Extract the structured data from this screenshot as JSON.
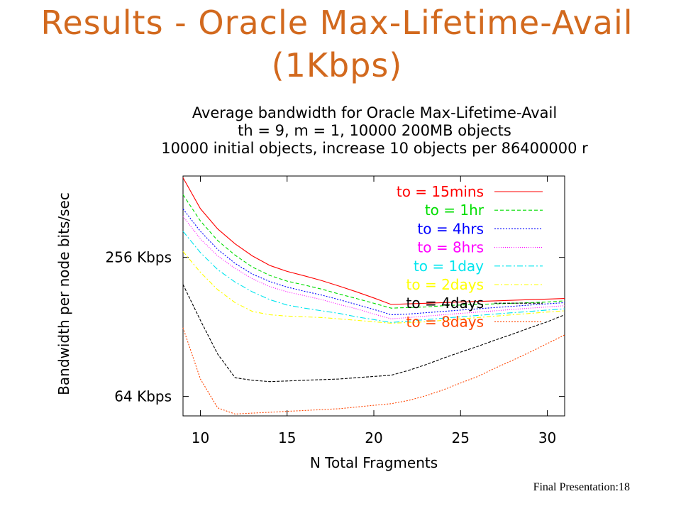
{
  "slide": {
    "title_line1": "Results - Oracle Max-Lifetime-Avail",
    "title_line2": "(1Kbps)",
    "footer": "Final Presentation:18"
  },
  "chart_data": {
    "type": "line",
    "title": [
      "Average bandwidth for Oracle Max-Lifetime-Avail",
      "th = 9, m = 1, 10000 200MB objects",
      "10000 initial objects, increase 10 objects per 86400000 r"
    ],
    "xlabel": "N Total Fragments",
    "ylabel": "Bandwidth per node bits/sec",
    "xlim": [
      9,
      31
    ],
    "x_ticks": [
      10,
      15,
      20,
      25,
      30
    ],
    "y_ticks": [
      {
        "label": "256 Kbps",
        "value": 262144
      },
      {
        "label": "64 Kbps",
        "value": 65536
      }
    ],
    "y_scale": "log",
    "ylim": [
      54000,
      590000
    ],
    "grid": false,
    "legend_position": "top-right",
    "x": [
      9,
      10,
      11,
      12,
      13,
      14,
      15,
      16,
      17,
      18,
      19,
      20,
      21,
      22,
      23,
      24,
      25,
      26,
      27,
      28,
      29,
      30,
      31
    ],
    "series": [
      {
        "name": "to = 15mins",
        "color": "#ff0000",
        "dash": "",
        "values": [
          580000,
          426000,
          348000,
          300000,
          266000,
          242000,
          228000,
          218000,
          208000,
          197000,
          186000,
          175000,
          164000,
          165000,
          166000,
          167000,
          168000,
          169000,
          170000,
          171000,
          172000,
          173000,
          174000
        ]
      },
      {
        "name": "to = 1hr",
        "color": "#00dd00",
        "dash": "5,3",
        "values": [
          490000,
          377000,
          310000,
          268000,
          238000,
          219000,
          207000,
          199000,
          191000,
          182000,
          174000,
          166000,
          158000,
          159000,
          160000,
          162000,
          163000,
          164000,
          165000,
          166000,
          167000,
          168000,
          170000
        ]
      },
      {
        "name": "to = 4hrs",
        "color": "#0000ff",
        "dash": "2,2",
        "values": [
          425000,
          340000,
          284000,
          247000,
          222000,
          206000,
          195000,
          187000,
          180000,
          172000,
          164000,
          156000,
          148000,
          149000,
          151000,
          153000,
          155000,
          157000,
          159000,
          161000,
          163000,
          165000,
          167000
        ]
      },
      {
        "name": "to = 8hrs",
        "color": "#ff00ff",
        "dash": "1,2",
        "values": [
          395000,
          315000,
          266000,
          235000,
          212000,
          196000,
          186000,
          179000,
          172000,
          164000,
          157000,
          149000,
          142000,
          144000,
          146000,
          148000,
          150000,
          152000,
          154000,
          156000,
          158000,
          160000,
          162000
        ]
      },
      {
        "name": "to = 1day",
        "color": "#00e5ee",
        "dash": "8,3,2,3",
        "values": [
          340000,
          275000,
          232000,
          205000,
          186000,
          172000,
          163000,
          158000,
          154000,
          150000,
          145000,
          141000,
          137000,
          139000,
          141000,
          143000,
          145000,
          147000,
          149000,
          151000,
          153000,
          155000,
          157000
        ]
      },
      {
        "name": "to = 2days",
        "color": "#ffff00",
        "dash": "6,3,2,3",
        "values": [
          278000,
          226000,
          190000,
          167000,
          153000,
          148000,
          146000,
          145000,
          144000,
          142000,
          140000,
          138000,
          136000,
          137000,
          138000,
          140000,
          142000,
          144000,
          146000,
          148000,
          150000,
          152000,
          154000
        ]
      },
      {
        "name": "to = 4days",
        "color": "#000000",
        "dash": "4,2",
        "values": [
          200000,
          140000,
          100000,
          79000,
          77000,
          76000,
          76500,
          77000,
          77500,
          78000,
          79000,
          80000,
          81000,
          85000,
          90000,
          96000,
          102000,
          108000,
          115000,
          122000,
          130000,
          138000,
          148000
        ]
      },
      {
        "name": "to = 8days",
        "color": "#ff4500",
        "dash": "2,2",
        "values": [
          130000,
          78000,
          58500,
          55000,
          55500,
          56000,
          56500,
          57000,
          57500,
          58000,
          59000,
          60000,
          61000,
          63000,
          66000,
          70000,
          75000,
          80000,
          87000,
          94000,
          102000,
          111000,
          121000
        ]
      }
    ]
  }
}
